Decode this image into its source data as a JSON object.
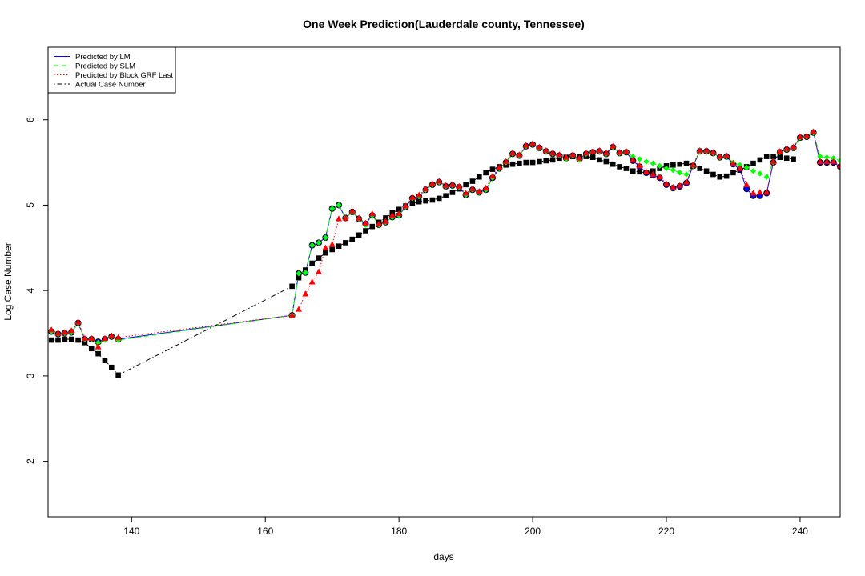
{
  "chart_data": {
    "type": "scatter",
    "title": "One Week Prediction(Lauderdale county, Tennessee)",
    "xlabel": "days",
    "ylabel": "Log Case Number",
    "xlim": [
      127.5,
      246
    ],
    "ylim": [
      1.35,
      6.85
    ],
    "xticks": [
      140,
      160,
      180,
      200,
      220,
      240
    ],
    "yticks": [
      2,
      3,
      4,
      5,
      6
    ],
    "grid": false,
    "legend_position": "top-left",
    "series": [
      {
        "name": "Predicted by LM",
        "color": "#0000ff",
        "line": "solid",
        "marker": "circle",
        "x": [
          128,
          129,
          130,
          131,
          132,
          133,
          134,
          135,
          136,
          137,
          138,
          164,
          165,
          166,
          167,
          168,
          169,
          170,
          171,
          172,
          173,
          174,
          175,
          176,
          177,
          178,
          179,
          180,
          181,
          182,
          183,
          184,
          185,
          186,
          187,
          188,
          189,
          190,
          191,
          192,
          193,
          194,
          195,
          196,
          197,
          198,
          199,
          200,
          201,
          202,
          203,
          204,
          205,
          206,
          207,
          208,
          209,
          210,
          211,
          212,
          213,
          214,
          215,
          216,
          217,
          218,
          219,
          220,
          221,
          222,
          223,
          224,
          225,
          226,
          227,
          228,
          229,
          230,
          231,
          232,
          233,
          234,
          235,
          236,
          237,
          238,
          239,
          240,
          241,
          242,
          243,
          244,
          245,
          246
        ],
        "y": [
          3.52,
          3.49,
          3.5,
          3.51,
          3.62,
          3.43,
          3.43,
          3.4,
          3.43,
          3.46,
          3.43,
          3.71,
          4.2,
          4.21,
          4.53,
          4.56,
          4.62,
          4.96,
          5.0,
          4.85,
          4.92,
          4.84,
          4.78,
          4.88,
          4.77,
          4.8,
          4.86,
          4.88,
          4.98,
          5.08,
          5.1,
          5.18,
          5.24,
          5.27,
          5.22,
          5.23,
          5.21,
          5.12,
          5.18,
          5.15,
          5.18,
          5.32,
          5.43,
          5.5,
          5.6,
          5.58,
          5.69,
          5.71,
          5.67,
          5.63,
          5.6,
          5.58,
          5.55,
          5.58,
          5.54,
          5.6,
          5.62,
          5.63,
          5.6,
          5.68,
          5.61,
          5.62,
          5.52,
          5.45,
          5.38,
          5.35,
          5.32,
          5.24,
          5.2,
          5.22,
          5.26,
          5.46,
          5.63,
          5.63,
          5.61,
          5.56,
          5.57,
          5.48,
          5.42,
          5.19,
          5.11,
          5.11,
          5.14,
          5.5,
          5.62,
          5.65,
          5.67,
          5.79,
          5.8,
          5.85,
          5.5,
          5.5,
          5.5,
          5.45
        ]
      },
      {
        "name": "Predicted by SLM",
        "color": "#00ff00",
        "line": "dashed",
        "marker": "diamond",
        "x": [
          128,
          129,
          130,
          131,
          132,
          133,
          134,
          135,
          136,
          137,
          138,
          164,
          165,
          166,
          167,
          168,
          169,
          170,
          171,
          172,
          173,
          174,
          175,
          176,
          177,
          178,
          179,
          180,
          181,
          182,
          183,
          184,
          185,
          186,
          187,
          188,
          189,
          190,
          191,
          192,
          193,
          194,
          195,
          196,
          197,
          198,
          199,
          200,
          201,
          202,
          203,
          204,
          205,
          206,
          207,
          208,
          209,
          210,
          211,
          212,
          213,
          214,
          215,
          216,
          217,
          218,
          219,
          220,
          221,
          222,
          223,
          224,
          225,
          226,
          227,
          228,
          229,
          230,
          231,
          232,
          233,
          234,
          235,
          236,
          237,
          238,
          239,
          240,
          241,
          242,
          243,
          244,
          245,
          246
        ],
        "y": [
          3.52,
          3.49,
          3.5,
          3.51,
          3.62,
          3.43,
          3.43,
          3.39,
          3.42,
          3.46,
          3.42,
          3.71,
          4.2,
          4.21,
          4.53,
          4.56,
          4.62,
          4.96,
          5.0,
          4.85,
          4.92,
          4.84,
          4.77,
          4.88,
          4.77,
          4.8,
          4.86,
          4.88,
          4.98,
          5.08,
          5.1,
          5.18,
          5.24,
          5.27,
          5.22,
          5.23,
          5.21,
          5.12,
          5.18,
          5.15,
          5.18,
          5.32,
          5.43,
          5.5,
          5.6,
          5.58,
          5.69,
          5.71,
          5.67,
          5.63,
          5.6,
          5.58,
          5.54,
          5.58,
          5.53,
          5.6,
          5.62,
          5.63,
          5.6,
          5.68,
          5.61,
          5.62,
          5.57,
          5.54,
          5.51,
          5.49,
          5.46,
          5.43,
          5.41,
          5.38,
          5.36,
          5.46,
          5.63,
          5.63,
          5.61,
          5.56,
          5.57,
          5.5,
          5.47,
          5.44,
          5.4,
          5.37,
          5.33,
          5.5,
          5.62,
          5.65,
          5.67,
          5.79,
          5.8,
          5.85,
          5.57,
          5.56,
          5.55,
          5.52
        ]
      },
      {
        "name": "Predicted by Block GRF Last",
        "color": "#ff0000",
        "line": "dotted",
        "marker": "triangle",
        "x": [
          128,
          129,
          130,
          131,
          132,
          133,
          134,
          135,
          136,
          137,
          138,
          164,
          165,
          166,
          167,
          168,
          169,
          170,
          171,
          172,
          173,
          174,
          175,
          176,
          177,
          178,
          179,
          180,
          181,
          182,
          183,
          184,
          185,
          186,
          187,
          188,
          189,
          190,
          191,
          192,
          193,
          194,
          195,
          196,
          197,
          198,
          199,
          200,
          201,
          202,
          203,
          204,
          205,
          206,
          207,
          208,
          209,
          210,
          211,
          212,
          213,
          214,
          215,
          216,
          217,
          218,
          219,
          220,
          221,
          222,
          223,
          224,
          225,
          226,
          227,
          228,
          229,
          230,
          231,
          232,
          233,
          234,
          235,
          236,
          237,
          238,
          239,
          240,
          241,
          242,
          243,
          244,
          245,
          246
        ],
        "y": [
          3.54,
          3.5,
          3.51,
          3.53,
          3.63,
          3.44,
          3.44,
          3.34,
          3.44,
          3.47,
          3.45,
          3.71,
          3.78,
          3.96,
          4.1,
          4.22,
          4.5,
          4.54,
          4.84,
          4.85,
          4.93,
          4.85,
          4.79,
          4.9,
          4.78,
          4.81,
          4.88,
          4.9,
          4.99,
          5.09,
          5.12,
          5.19,
          5.25,
          5.28,
          5.23,
          5.24,
          5.22,
          5.14,
          5.19,
          5.16,
          5.2,
          5.34,
          5.44,
          5.51,
          5.61,
          5.59,
          5.7,
          5.72,
          5.68,
          5.64,
          5.61,
          5.59,
          5.56,
          5.59,
          5.55,
          5.61,
          5.63,
          5.64,
          5.61,
          5.69,
          5.62,
          5.63,
          5.53,
          5.46,
          5.39,
          5.36,
          5.33,
          5.25,
          5.21,
          5.23,
          5.27,
          5.47,
          5.64,
          5.64,
          5.62,
          5.57,
          5.58,
          5.49,
          5.43,
          5.24,
          5.14,
          5.15,
          5.15,
          5.51,
          5.63,
          5.66,
          5.68,
          5.8,
          5.81,
          5.86,
          5.51,
          5.51,
          5.51,
          5.46
        ]
      },
      {
        "name": "Actual Case Number",
        "color": "#000000",
        "line": "dotdash",
        "marker": "square",
        "x": [
          128,
          129,
          130,
          131,
          132,
          133,
          134,
          135,
          136,
          137,
          138,
          164,
          165,
          166,
          167,
          168,
          169,
          170,
          171,
          172,
          173,
          174,
          175,
          176,
          177,
          178,
          179,
          180,
          181,
          182,
          183,
          184,
          185,
          186,
          187,
          188,
          189,
          190,
          191,
          192,
          193,
          194,
          195,
          196,
          197,
          198,
          199,
          200,
          201,
          202,
          203,
          204,
          205,
          206,
          207,
          208,
          209,
          210,
          211,
          212,
          213,
          214,
          215,
          216,
          217,
          218,
          219,
          220,
          221,
          222,
          223,
          224,
          225,
          226,
          227,
          228,
          229,
          230,
          231,
          232,
          233,
          234,
          235,
          236,
          237,
          238,
          239,
          240,
          241,
          242,
          243,
          244,
          245,
          246
        ],
        "y": [
          3.42,
          3.42,
          3.43,
          3.43,
          3.42,
          3.39,
          3.32,
          3.26,
          3.18,
          3.1,
          3.01,
          4.05,
          4.15,
          4.24,
          4.32,
          4.38,
          4.44,
          4.48,
          4.52,
          4.56,
          4.6,
          4.65,
          4.7,
          4.75,
          4.8,
          4.85,
          4.91,
          4.95,
          4.99,
          5.02,
          5.04,
          5.05,
          5.06,
          5.08,
          5.11,
          5.15,
          5.19,
          5.24,
          5.28,
          5.33,
          5.38,
          5.42,
          5.45,
          5.47,
          5.48,
          5.49,
          5.5,
          5.5,
          5.51,
          5.52,
          5.53,
          5.55,
          5.56,
          5.57,
          5.57,
          5.57,
          5.56,
          5.53,
          5.51,
          5.48,
          5.45,
          5.43,
          5.4,
          5.39,
          5.38,
          5.4,
          5.43,
          5.46,
          5.47,
          5.48,
          5.49,
          5.46,
          5.43,
          5.4,
          5.36,
          5.33,
          5.34,
          5.38,
          5.41,
          5.45,
          5.49,
          5.53,
          5.57,
          5.57,
          5.56,
          5.55,
          5.54,
          null,
          null,
          null,
          null,
          null,
          null,
          null
        ]
      }
    ]
  }
}
